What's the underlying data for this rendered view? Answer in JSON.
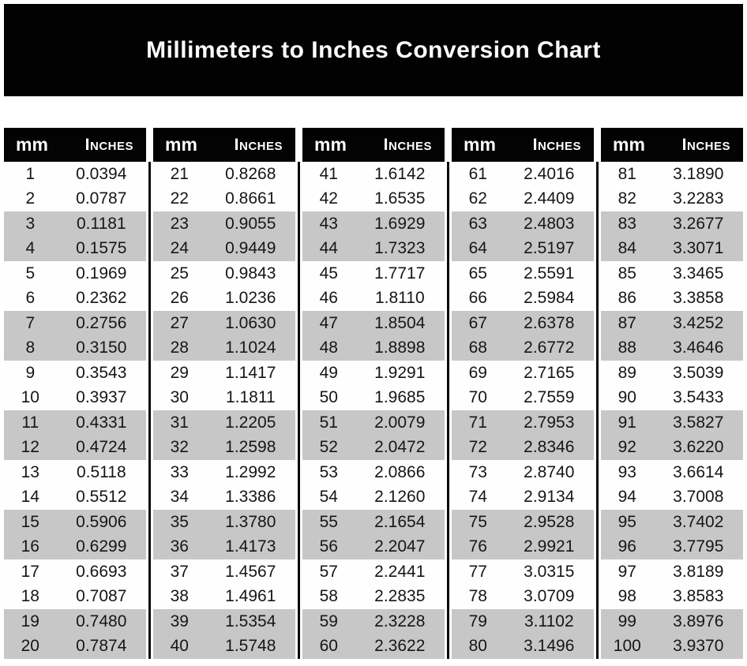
{
  "title": "Millimeters to Inches Conversion Chart",
  "colors": {
    "banner_bg": "#020202",
    "header_bg": "#030303",
    "header_text": "#fdfdfd",
    "row_white": "#fefefe",
    "row_gray": "#c7c7c7",
    "value_text": "#161616",
    "divider": "#0a0a0a"
  },
  "chart_data": {
    "type": "table",
    "title": "Millimeters to Inches Conversion Chart",
    "columns": [
      "mm",
      "Inches"
    ],
    "layout": {
      "column_groups": 5,
      "rows_per_group": 20,
      "banding": "pairs-of-two-rows alternate white/gray"
    },
    "rows": [
      [
        1,
        "0.0394"
      ],
      [
        2,
        "0.0787"
      ],
      [
        3,
        "0.1181"
      ],
      [
        4,
        "0.1575"
      ],
      [
        5,
        "0.1969"
      ],
      [
        6,
        "0.2362"
      ],
      [
        7,
        "0.2756"
      ],
      [
        8,
        "0.3150"
      ],
      [
        9,
        "0.3543"
      ],
      [
        10,
        "0.3937"
      ],
      [
        11,
        "0.4331"
      ],
      [
        12,
        "0.4724"
      ],
      [
        13,
        "0.5118"
      ],
      [
        14,
        "0.5512"
      ],
      [
        15,
        "0.5906"
      ],
      [
        16,
        "0.6299"
      ],
      [
        17,
        "0.6693"
      ],
      [
        18,
        "0.7087"
      ],
      [
        19,
        "0.7480"
      ],
      [
        20,
        "0.7874"
      ],
      [
        21,
        "0.8268"
      ],
      [
        22,
        "0.8661"
      ],
      [
        23,
        "0.9055"
      ],
      [
        24,
        "0.9449"
      ],
      [
        25,
        "0.9843"
      ],
      [
        26,
        "1.0236"
      ],
      [
        27,
        "1.0630"
      ],
      [
        28,
        "1.1024"
      ],
      [
        29,
        "1.1417"
      ],
      [
        30,
        "1.1811"
      ],
      [
        31,
        "1.2205"
      ],
      [
        32,
        "1.2598"
      ],
      [
        33,
        "1.2992"
      ],
      [
        34,
        "1.3386"
      ],
      [
        35,
        "1.3780"
      ],
      [
        36,
        "1.4173"
      ],
      [
        37,
        "1.4567"
      ],
      [
        38,
        "1.4961"
      ],
      [
        39,
        "1.5354"
      ],
      [
        40,
        "1.5748"
      ],
      [
        41,
        "1.6142"
      ],
      [
        42,
        "1.6535"
      ],
      [
        43,
        "1.6929"
      ],
      [
        44,
        "1.7323"
      ],
      [
        45,
        "1.7717"
      ],
      [
        46,
        "1.8110"
      ],
      [
        47,
        "1.8504"
      ],
      [
        48,
        "1.8898"
      ],
      [
        49,
        "1.9291"
      ],
      [
        50,
        "1.9685"
      ],
      [
        51,
        "2.0079"
      ],
      [
        52,
        "2.0472"
      ],
      [
        53,
        "2.0866"
      ],
      [
        54,
        "2.1260"
      ],
      [
        55,
        "2.1654"
      ],
      [
        56,
        "2.2047"
      ],
      [
        57,
        "2.2441"
      ],
      [
        58,
        "2.2835"
      ],
      [
        59,
        "2.3228"
      ],
      [
        60,
        "2.3622"
      ],
      [
        61,
        "2.4016"
      ],
      [
        62,
        "2.4409"
      ],
      [
        63,
        "2.4803"
      ],
      [
        64,
        "2.5197"
      ],
      [
        65,
        "2.5591"
      ],
      [
        66,
        "2.5984"
      ],
      [
        67,
        "2.6378"
      ],
      [
        68,
        "2.6772"
      ],
      [
        69,
        "2.7165"
      ],
      [
        70,
        "2.7559"
      ],
      [
        71,
        "2.7953"
      ],
      [
        72,
        "2.8346"
      ],
      [
        73,
        "2.8740"
      ],
      [
        74,
        "2.9134"
      ],
      [
        75,
        "2.9528"
      ],
      [
        76,
        "2.9921"
      ],
      [
        77,
        "3.0315"
      ],
      [
        78,
        "3.0709"
      ],
      [
        79,
        "3.1102"
      ],
      [
        80,
        "3.1496"
      ],
      [
        81,
        "3.1890"
      ],
      [
        82,
        "3.2283"
      ],
      [
        83,
        "3.2677"
      ],
      [
        84,
        "3.3071"
      ],
      [
        85,
        "3.3465"
      ],
      [
        86,
        "3.3858"
      ],
      [
        87,
        "3.4252"
      ],
      [
        88,
        "3.4646"
      ],
      [
        89,
        "3.5039"
      ],
      [
        90,
        "3.5433"
      ],
      [
        91,
        "3.5827"
      ],
      [
        92,
        "3.6220"
      ],
      [
        93,
        "3.6614"
      ],
      [
        94,
        "3.7008"
      ],
      [
        95,
        "3.7402"
      ],
      [
        96,
        "3.7795"
      ],
      [
        97,
        "3.8189"
      ],
      [
        98,
        "3.8583"
      ],
      [
        99,
        "3.8976"
      ],
      [
        100,
        "3.9370"
      ]
    ]
  }
}
